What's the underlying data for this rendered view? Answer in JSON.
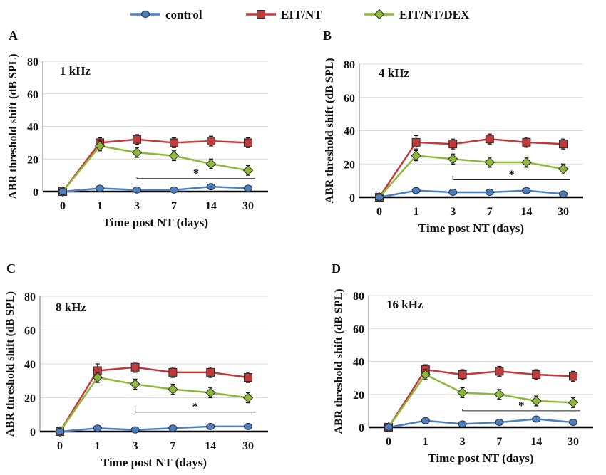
{
  "legend": {
    "items": [
      {
        "label": "control",
        "color": "#4a7fc1",
        "marker": "circle"
      },
      {
        "label": "EIT/NT",
        "color": "#c0393b",
        "marker": "square"
      },
      {
        "label": "EIT/NT/DEX",
        "color": "#8db83a",
        "marker": "diamond"
      }
    ]
  },
  "colors": {
    "control": "#4a7fc1",
    "eit_nt": "#c0393b",
    "eit_nt_dex": "#8db83a",
    "marker_edge": "#2b2b2b"
  },
  "chart_data": [
    {
      "type": "line",
      "panel": "A",
      "title": "1 kHz",
      "xlabel": "Time post NT (days)",
      "ylabel": "ABR threshold shift (dB SPL)",
      "categories": [
        "0",
        "1",
        "3",
        "7",
        "14",
        "30"
      ],
      "ylim": [
        0,
        80
      ],
      "yticks": [
        0,
        20,
        40,
        60,
        80
      ],
      "series": [
        {
          "name": "control",
          "values": [
            0,
            2,
            1,
            1,
            3,
            2
          ],
          "errors": [
            0,
            1,
            1,
            1,
            1,
            1
          ]
        },
        {
          "name": "EIT/NT",
          "values": [
            0,
            30,
            32,
            30,
            31,
            30
          ],
          "errors": [
            0,
            3,
            3,
            3,
            3,
            3
          ]
        },
        {
          "name": "EIT/NT/DEX",
          "values": [
            0,
            28,
            24,
            22,
            17,
            13
          ],
          "errors": [
            0,
            3,
            3,
            3,
            3,
            3
          ]
        }
      ],
      "significance": {
        "label": "*",
        "from": "3",
        "to": "30"
      }
    },
    {
      "type": "line",
      "panel": "B",
      "title": "4 kHz",
      "xlabel": "Time post NT (days)",
      "ylabel": "ABR threshold shift (dB SPL)",
      "categories": [
        "0",
        "1",
        "3",
        "7",
        "14",
        "30"
      ],
      "ylim": [
        0,
        80
      ],
      "yticks": [
        0,
        20,
        40,
        60,
        80
      ],
      "series": [
        {
          "name": "control",
          "values": [
            0,
            4,
            3,
            3,
            4,
            2
          ],
          "errors": [
            0,
            1,
            1,
            1,
            1,
            1
          ]
        },
        {
          "name": "EIT/NT",
          "values": [
            0,
            33,
            32,
            35,
            33,
            32
          ],
          "errors": [
            0,
            4,
            3,
            3,
            3,
            3
          ]
        },
        {
          "name": "EIT/NT/DEX",
          "values": [
            0,
            25,
            23,
            21,
            21,
            17
          ],
          "errors": [
            0,
            3,
            3,
            3,
            3,
            3
          ]
        }
      ],
      "significance": {
        "label": "*",
        "from": "3",
        "to": "30"
      }
    },
    {
      "type": "line",
      "panel": "C",
      "title": "8 kHz",
      "xlabel": "Time post NT (days)",
      "ylabel": "ABR threshold shift (dB SPL)",
      "categories": [
        "0",
        "1",
        "3",
        "7",
        "14",
        "30"
      ],
      "ylim": [
        0,
        80
      ],
      "yticks": [
        0,
        20,
        40,
        60,
        80
      ],
      "series": [
        {
          "name": "control",
          "values": [
            0,
            2,
            1,
            2,
            3,
            3
          ],
          "errors": [
            0,
            1,
            1,
            1,
            1,
            1
          ]
        },
        {
          "name": "EIT/NT",
          "values": [
            0,
            36,
            38,
            35,
            35,
            32
          ],
          "errors": [
            0,
            4,
            3,
            3,
            3,
            3
          ]
        },
        {
          "name": "EIT/NT/DEX",
          "values": [
            0,
            32,
            28,
            25,
            23,
            20
          ],
          "errors": [
            0,
            3,
            3,
            3,
            3,
            3
          ]
        }
      ],
      "significance": {
        "label": "*",
        "from": "3",
        "to": "30"
      }
    },
    {
      "type": "line",
      "panel": "D",
      "title": "16 kHz",
      "xlabel": "Time post NT (days)",
      "ylabel": "ABR threshold shift (dB SPL)",
      "categories": [
        "0",
        "1",
        "3",
        "7",
        "14",
        "30"
      ],
      "ylim": [
        0,
        80
      ],
      "yticks": [
        0,
        20,
        40,
        60,
        80
      ],
      "series": [
        {
          "name": "control",
          "values": [
            0,
            4,
            2,
            3,
            5,
            3
          ],
          "errors": [
            0,
            1,
            1,
            1,
            1,
            1
          ]
        },
        {
          "name": "EIT/NT",
          "values": [
            0,
            35,
            32,
            34,
            32,
            31
          ],
          "errors": [
            0,
            3,
            3,
            3,
            3,
            3
          ]
        },
        {
          "name": "EIT/NT/DEX",
          "values": [
            0,
            32,
            21,
            20,
            16,
            15
          ],
          "errors": [
            0,
            3,
            3,
            3,
            3,
            3
          ]
        }
      ],
      "significance": {
        "label": "*",
        "from": "3",
        "to": "30"
      }
    }
  ]
}
